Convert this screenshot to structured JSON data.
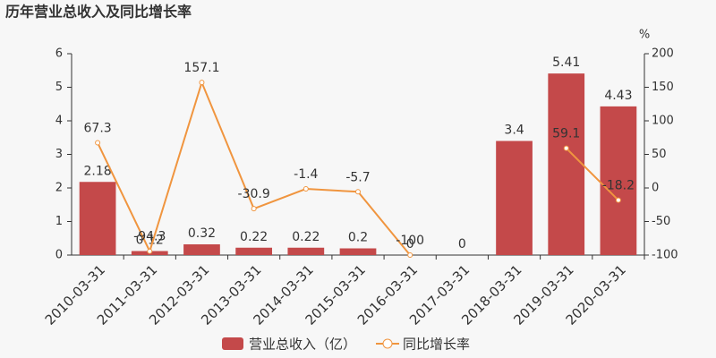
{
  "chart_data": {
    "type": "bar-line",
    "title": "历年营业总收入及同比增长率",
    "y2_unit": "%",
    "categories": [
      "2010-03-31",
      "2011-03-31",
      "2012-03-31",
      "2013-03-31",
      "2014-03-31",
      "2015-03-31",
      "2016-03-31",
      "2017-03-31",
      "2018-03-31",
      "2019-03-31",
      "2020-03-31"
    ],
    "series": [
      {
        "name": "营业总收入（亿）",
        "type": "bar",
        "color": "#c4494a",
        "axis": "y",
        "values": [
          2.18,
          0.12,
          0.32,
          0.22,
          0.22,
          0.2,
          0,
          0,
          3.4,
          5.41,
          4.43
        ]
      },
      {
        "name": "同比增长率",
        "type": "line",
        "color": "#f0953f",
        "axis": "y2",
        "values": [
          67.3,
          -94.3,
          157.1,
          -30.9,
          -1.4,
          -5.7,
          -100,
          null,
          null,
          59.1,
          -18.2
        ]
      }
    ],
    "ylim": [
      0,
      6
    ],
    "yticks": [
      0,
      1,
      2,
      3,
      4,
      5,
      6
    ],
    "y2lim": [
      -100,
      200
    ],
    "y2ticks": [
      -100,
      -50,
      0,
      50,
      100,
      150,
      200
    ],
    "grid": false
  }
}
